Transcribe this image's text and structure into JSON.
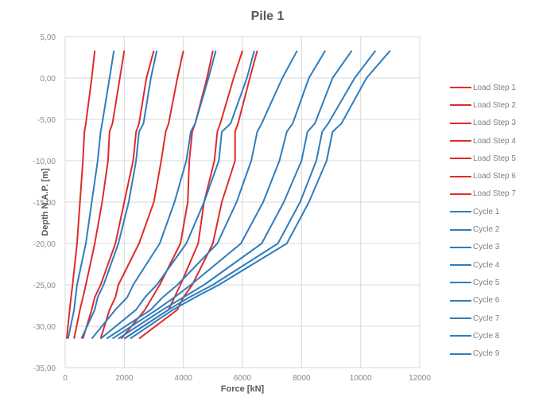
{
  "chart_data": {
    "type": "line",
    "title": "Pile 1",
    "xlabel": "Force [kN]",
    "ylabel": "Depth N.A.P. [m]",
    "xlim": [
      0,
      12000
    ],
    "ylim": [
      -35,
      5
    ],
    "x_ticks": [
      "0",
      "2000",
      "4000",
      "6000",
      "8000",
      "10000",
      "12000"
    ],
    "y_ticks": [
      "5,00",
      "0,00",
      "-5,00",
      "-10,00",
      "-15,00",
      "-20,00",
      "-25,00",
      "-30,00",
      "-35,00"
    ],
    "grid": true,
    "legend_position": "right",
    "depths": [
      3.3,
      0,
      -5.5,
      -6.5,
      -10,
      -15,
      -20,
      -25,
      -26.5,
      -28,
      -31.5
    ],
    "series": [
      {
        "name": "Load Step 1",
        "color": "#e02b2b",
        "values": [
          1000,
          900,
          700,
          650,
          600,
          500,
          400,
          250,
          200,
          150,
          50
        ]
      },
      {
        "name": "Load Step 2",
        "color": "#e02b2b",
        "values": [
          2000,
          1850,
          1600,
          1500,
          1450,
          1250,
          1000,
          700,
          600,
          500,
          300
        ]
      },
      {
        "name": "Load Step 3",
        "color": "#e02b2b",
        "values": [
          3000,
          2750,
          2500,
          2400,
          2300,
          2000,
          1700,
          1200,
          1000,
          900,
          600
        ]
      },
      {
        "name": "Load Step 4",
        "color": "#e02b2b",
        "values": [
          4000,
          3800,
          3500,
          3400,
          3250,
          3000,
          2500,
          1800,
          1700,
          1500,
          1200
        ]
      },
      {
        "name": "Load Step 5",
        "color": "#e02b2b",
        "values": [
          5000,
          4800,
          4400,
          4300,
          4200,
          4150,
          3900,
          3200,
          2950,
          2700,
          1900
        ]
      },
      {
        "name": "Load Step 6",
        "color": "#e02b2b",
        "values": [
          6000,
          5700,
          5250,
          5150,
          5050,
          4700,
          4500,
          3900,
          3700,
          3500,
          2000
        ]
      },
      {
        "name": "Load Step 7",
        "color": "#e02b2b",
        "values": [
          6500,
          6250,
          5850,
          5750,
          5750,
          5300,
          5000,
          4300,
          4000,
          3800,
          2500
        ]
      },
      {
        "name": "Cycle 1",
        "color": "#2e7dbf",
        "values": [
          1650,
          1500,
          1250,
          1200,
          1100,
          900,
          700,
          400,
          350,
          300,
          100
        ]
      },
      {
        "name": "Cycle 2",
        "color": "#2e7dbf",
        "values": [
          3100,
          2900,
          2650,
          2500,
          2400,
          2150,
          1800,
          1300,
          1100,
          1000,
          550
        ]
      },
      {
        "name": "Cycle 3",
        "color": "#2e7dbf",
        "values": [
          5100,
          4850,
          4400,
          4250,
          4100,
          3700,
          3200,
          2300,
          2100,
          1700,
          900
        ]
      },
      {
        "name": "Cycle 4",
        "color": "#2e7dbf",
        "values": [
          6400,
          6150,
          5600,
          5300,
          5200,
          4700,
          4100,
          3100,
          2700,
          2400,
          1200
        ]
      },
      {
        "name": "Cycle 5",
        "color": "#2e7dbf",
        "values": [
          7850,
          7350,
          6650,
          6500,
          6300,
          5800,
          5150,
          3800,
          3300,
          2900,
          1400
        ]
      },
      {
        "name": "Cycle 6",
        "color": "#2e7dbf",
        "values": [
          8800,
          8250,
          7700,
          7500,
          7250,
          6700,
          5950,
          4250,
          3700,
          3100,
          1600
        ]
      },
      {
        "name": "Cycle 7",
        "color": "#2e7dbf",
        "values": [
          9700,
          9050,
          8450,
          8200,
          8000,
          7400,
          6650,
          4700,
          4000,
          3300,
          1800
        ]
      },
      {
        "name": "Cycle 8",
        "color": "#2e7dbf",
        "values": [
          10500,
          9800,
          8900,
          8700,
          8500,
          7950,
          7200,
          5000,
          4200,
          3500,
          2000
        ]
      },
      {
        "name": "Cycle 9",
        "color": "#2e7dbf",
        "values": [
          11000,
          10200,
          9350,
          9050,
          8850,
          8250,
          7500,
          5200,
          4400,
          3650,
          2200
        ]
      }
    ]
  }
}
